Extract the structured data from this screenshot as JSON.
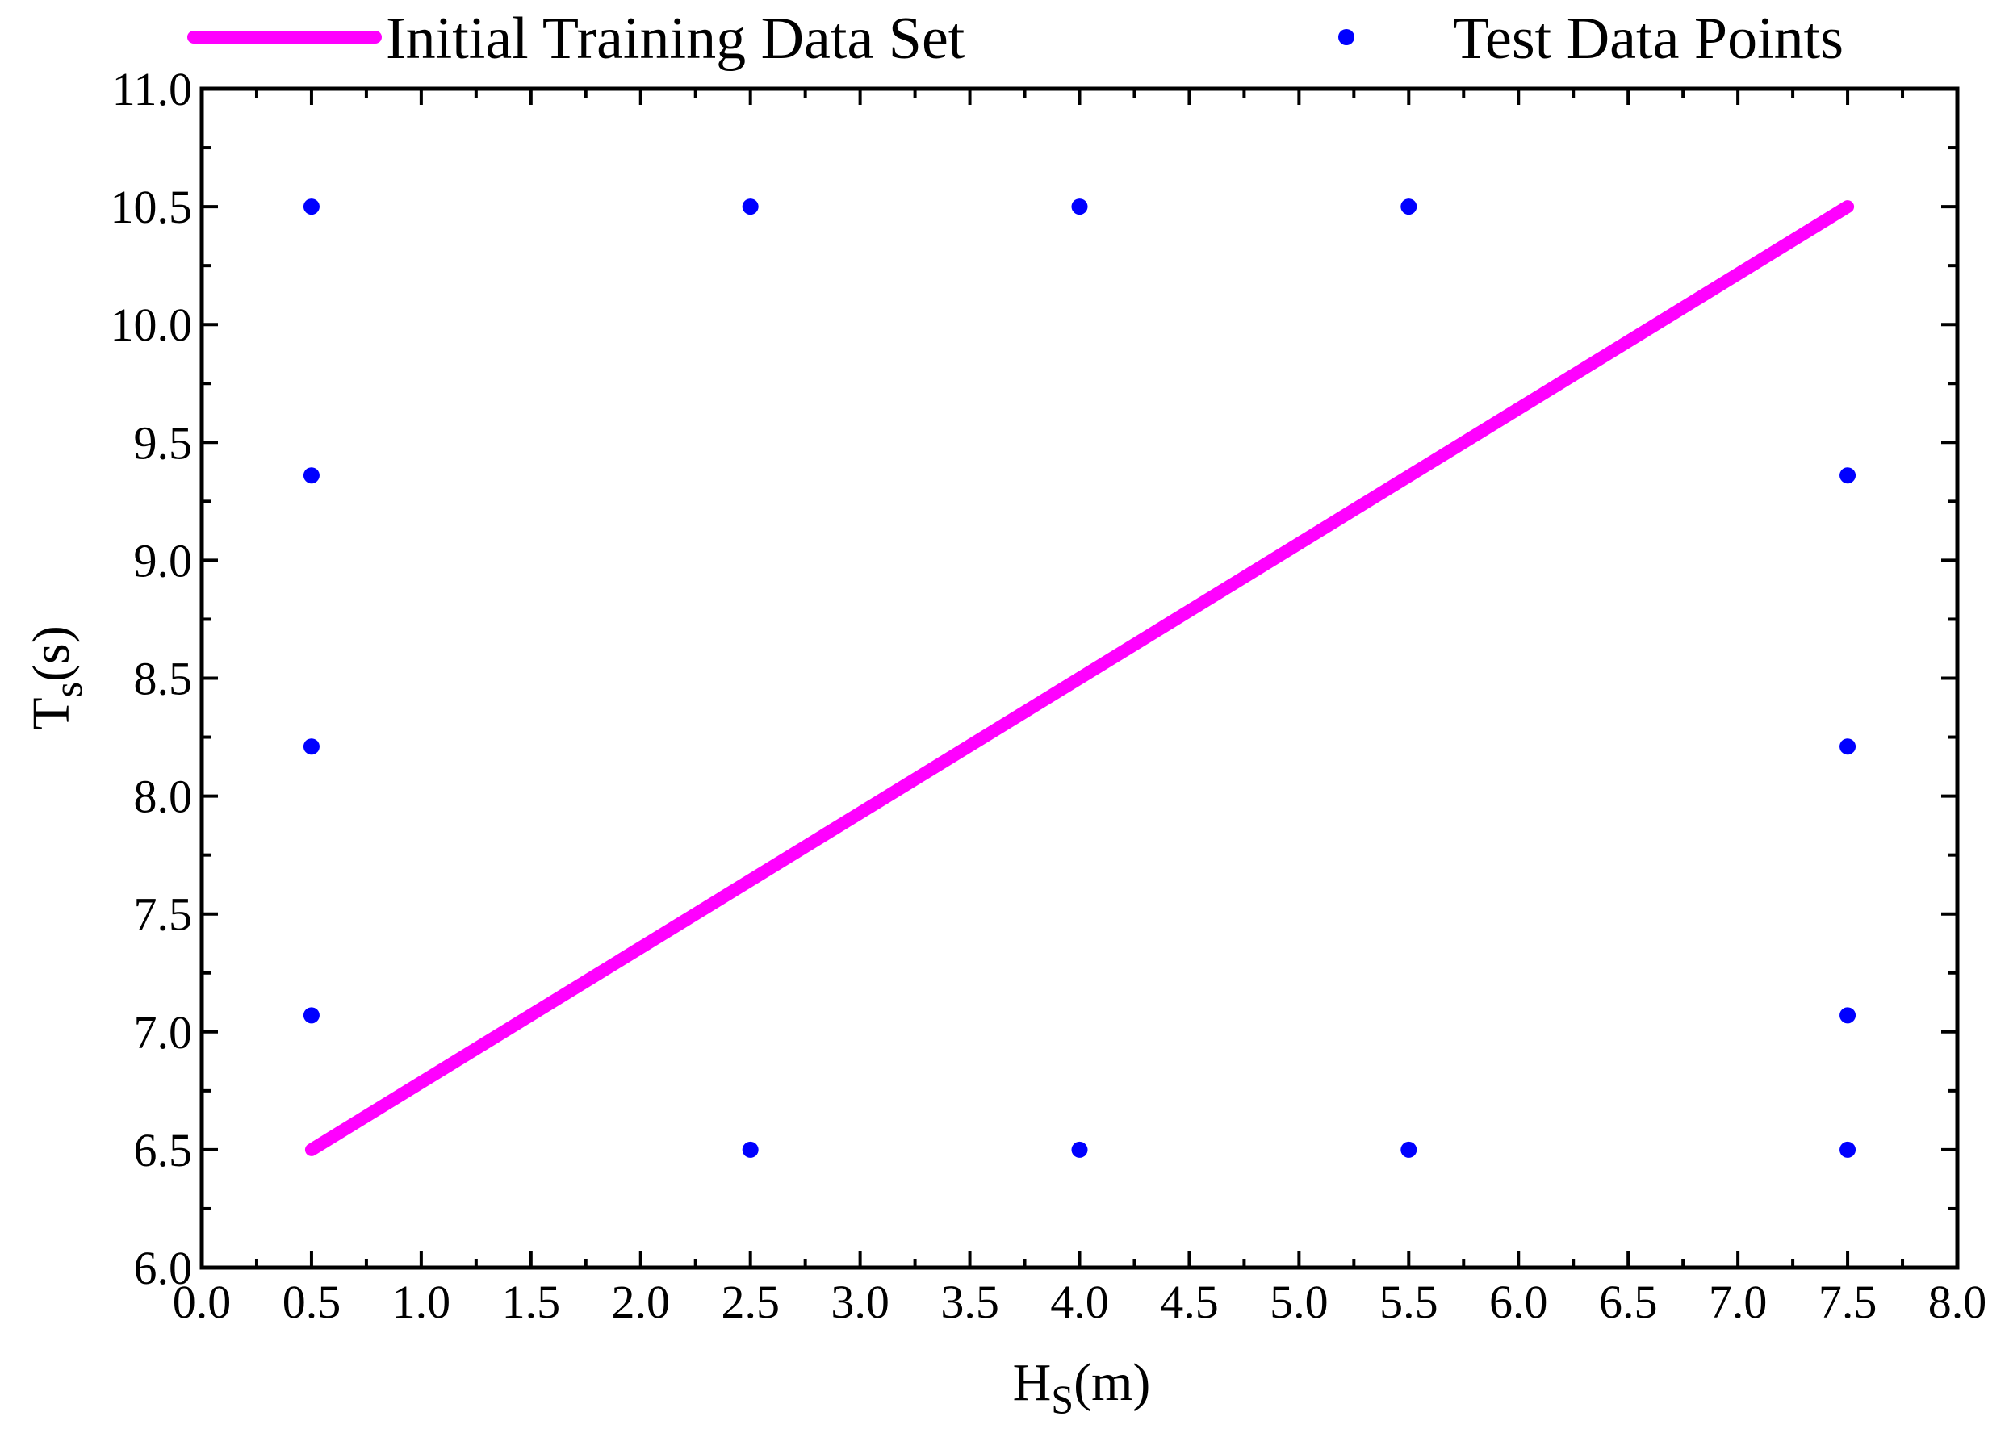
{
  "chart_data": {
    "type": "scatter",
    "title": "",
    "xlabel": {
      "main": "H",
      "sub": "S",
      "rest": "(m)"
    },
    "ylabel": {
      "main": "T",
      "sub": "s",
      "rest": "(s)"
    },
    "xlim": [
      0,
      8
    ],
    "ylim": [
      6,
      11
    ],
    "x_tick_labels": [
      "0.0",
      "0.5",
      "1.0",
      "1.5",
      "2.0",
      "2.5",
      "3.0",
      "3.5",
      "4.0",
      "4.5",
      "5.0",
      "5.5",
      "6.0",
      "6.5",
      "7.0",
      "7.5",
      "8.0"
    ],
    "y_tick_labels": [
      "6.0",
      "6.5",
      "7.0",
      "7.5",
      "8.0",
      "8.5",
      "9.0",
      "9.5",
      "10.0",
      "10.5",
      "11.0"
    ],
    "grid": false,
    "legend_position": "top",
    "series": [
      {
        "name": "Initial Training Data Set",
        "type": "line",
        "color": "#ff00ff",
        "points": [
          [
            0.5,
            6.5
          ],
          [
            7.5,
            10.5
          ]
        ]
      },
      {
        "name": "Test Data Points",
        "type": "scatter",
        "color": "#0000ff",
        "points": [
          [
            0.5,
            10.5
          ],
          [
            2.5,
            10.5
          ],
          [
            4.0,
            10.5
          ],
          [
            5.5,
            10.5
          ],
          [
            0.5,
            9.36
          ],
          [
            7.5,
            9.36
          ],
          [
            0.5,
            8.21
          ],
          [
            7.5,
            8.21
          ],
          [
            0.5,
            7.07
          ],
          [
            7.5,
            7.07
          ],
          [
            2.5,
            6.5
          ],
          [
            4.0,
            6.5
          ],
          [
            5.5,
            6.5
          ],
          [
            7.5,
            6.5
          ]
        ]
      }
    ]
  }
}
